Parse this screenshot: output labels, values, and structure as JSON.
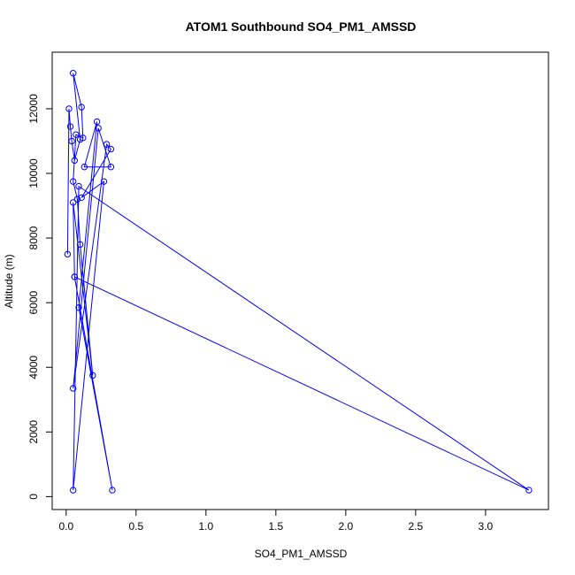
{
  "chart_data": {
    "type": "line",
    "title": "ATOM1 Southbound SO4_PM1_AMSSD",
    "xlabel": "SO4_PM1_AMSSD",
    "ylabel": "Altitude (m)",
    "xlim": [
      -0.1,
      3.45
    ],
    "ylim": [
      -400,
      13750
    ],
    "xticks": [
      0.0,
      0.5,
      1.0,
      1.5,
      2.0,
      2.5,
      3.0
    ],
    "xtick_labels": [
      "0.0",
      "0.5",
      "1.0",
      "1.5",
      "2.0",
      "2.5",
      "3.0"
    ],
    "yticks": [
      0,
      2000,
      4000,
      6000,
      8000,
      10000,
      12000
    ],
    "ytick_labels": [
      "0",
      "2000",
      "4000",
      "6000",
      "8000",
      "10000",
      "12000"
    ],
    "grid": false,
    "series": [
      {
        "color": "#0000ff",
        "marker": "open-circle",
        "points": [
          {
            "x": 0.01,
            "y": 7500
          },
          {
            "x": 0.02,
            "y": 12000
          },
          {
            "x": 0.03,
            "y": 11450
          },
          {
            "x": 0.04,
            "y": 11000
          },
          {
            "x": 0.06,
            "y": 10400
          },
          {
            "x": 0.1,
            "y": 11050
          },
          {
            "x": 0.05,
            "y": 13100
          },
          {
            "x": 0.11,
            "y": 12050
          },
          {
            "x": 0.12,
            "y": 11100
          },
          {
            "x": 0.07,
            "y": 11200
          },
          {
            "x": 0.05,
            "y": 9750
          },
          {
            "x": 0.08,
            "y": 9200
          },
          {
            "x": 0.1,
            "y": 7800
          },
          {
            "x": 0.19,
            "y": 3750
          },
          {
            "x": 0.05,
            "y": 9100
          },
          {
            "x": 0.06,
            "y": 6800
          },
          {
            "x": 0.33,
            "y": 200
          },
          {
            "x": 0.09,
            "y": 5850
          },
          {
            "x": 0.22,
            "y": 11600
          },
          {
            "x": 0.13,
            "y": 10200
          },
          {
            "x": 0.32,
            "y": 10200
          },
          {
            "x": 0.23,
            "y": 11400
          },
          {
            "x": 0.05,
            "y": 3350
          },
          {
            "x": 0.29,
            "y": 10900
          },
          {
            "x": 0.32,
            "y": 10750
          },
          {
            "x": 0.11,
            "y": 9250
          },
          {
            "x": 0.27,
            "y": 9750
          },
          {
            "x": 0.05,
            "y": 200
          },
          {
            "x": 0.09,
            "y": 9600
          },
          {
            "x": 3.31,
            "y": 200
          },
          {
            "x": 0.06,
            "y": 6800
          }
        ]
      }
    ]
  }
}
